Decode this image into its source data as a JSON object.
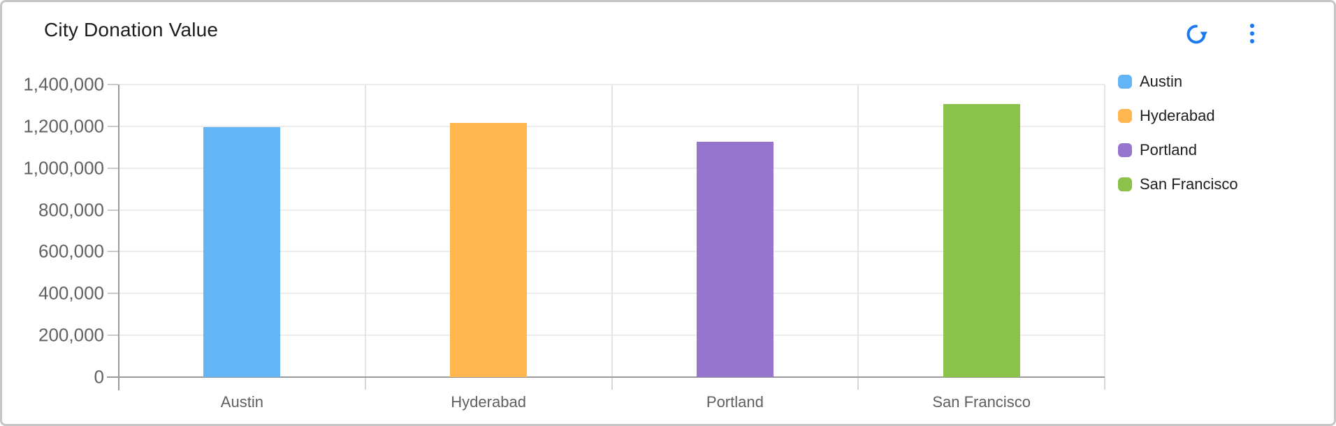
{
  "card": {
    "title": "City Donation Value"
  },
  "toolbar": {
    "icon_color": "#1c79ef",
    "refresh_icon": "refresh-icon",
    "menu_icon": "kebab-menu-icon"
  },
  "chart_data": {
    "type": "bar",
    "title": "City Donation Value",
    "categories": [
      "Austin",
      "Hyderabad",
      "Portland",
      "San Francisco"
    ],
    "values": [
      1195000,
      1215000,
      1125000,
      1305000
    ],
    "colors": [
      "#64b5f6",
      "#ffb64f",
      "#9575cd",
      "#8bc34a"
    ],
    "xlabel": "",
    "ylabel": "",
    "ylim": [
      0,
      1400000
    ],
    "ytick_step": 200000,
    "ytick_labels": [
      "0",
      "200,000",
      "400,000",
      "600,000",
      "800,000",
      "1,000,000",
      "1,200,000",
      "1,400,000"
    ],
    "grid": true,
    "legend_position": "right",
    "legend": [
      {
        "label": "Austin",
        "color": "#64b5f6"
      },
      {
        "label": "Hyderabad",
        "color": "#ffb64f"
      },
      {
        "label": "Portland",
        "color": "#9575cd"
      },
      {
        "label": "San Francisco",
        "color": "#8bc34a"
      }
    ]
  }
}
